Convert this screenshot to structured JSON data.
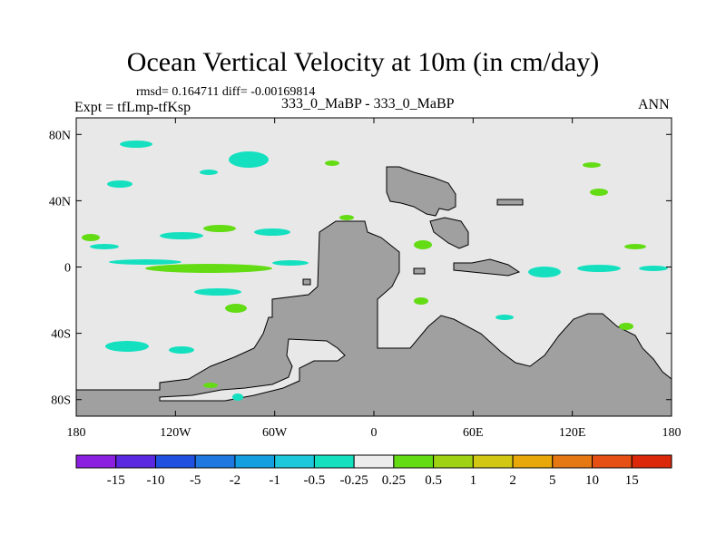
{
  "chart_data": {
    "type": "heatmap",
    "title": "Ocean Vertical Velocity at 10m (in cm/day)",
    "stats_label": "rmsd= 0.164711 diff= -0.00169814",
    "experiment_label": "Expt = tfLmp-tfKsp",
    "cases_label": "333_0_MaBP - 333_0_MaBP",
    "season_label": "ANN",
    "x_ticks": [
      "180",
      "120W",
      "60W",
      "0",
      "60E",
      "120E",
      "180"
    ],
    "x_tick_values": [
      -180,
      -120,
      -60,
      0,
      60,
      120,
      180
    ],
    "y_ticks": [
      "80N",
      "40N",
      "0",
      "40S",
      "80S"
    ],
    "y_tick_values": [
      80,
      40,
      0,
      -40,
      -80
    ],
    "xlim": [
      -180,
      180
    ],
    "ylim": [
      -90,
      90
    ],
    "colorbar": {
      "labels": [
        "-15",
        "-10",
        "-5",
        "-2",
        "-1",
        "-0.5",
        "-0.25",
        "0.25",
        "0.5",
        "1",
        "2",
        "5",
        "10",
        "15"
      ],
      "colors": [
        "#8c20e0",
        "#5a28e0",
        "#2050e0",
        "#1e78e0",
        "#14a0e0",
        "#1ec8dc",
        "#14e0c0",
        "#ececec",
        "#64dc14",
        "#a0d214",
        "#d2c814",
        "#e8a80a",
        "#e67814",
        "#e65014",
        "#dc280a"
      ]
    },
    "land_color": "#a0a0a0",
    "ocean_color": "#e8e8e8"
  }
}
